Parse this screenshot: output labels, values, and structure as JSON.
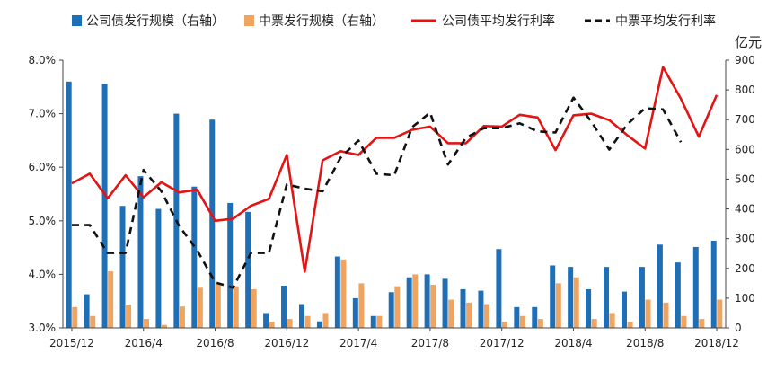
{
  "chart_data": {
    "type": "bar+line",
    "legend": [
      {
        "label": "公司债发行规模（右轴）",
        "kind": "bar",
        "color": "#1F6FB6"
      },
      {
        "label": "中票发行规模（右轴）",
        "kind": "bar",
        "color": "#F0A462"
      },
      {
        "label": "公司债平均发行利率",
        "kind": "line",
        "color": "#E31414"
      },
      {
        "label": "中票平均发行利率",
        "kind": "dashed",
        "color": "#111111"
      }
    ],
    "y_right_unit": "亿元",
    "y_left": {
      "min": 3.0,
      "max": 8.0,
      "ticks": [
        "3.0%",
        "4.0%",
        "5.0%",
        "6.0%",
        "7.0%",
        "8.0%"
      ]
    },
    "y_right": {
      "min": 0,
      "max": 900,
      "ticks": [
        "0",
        "100",
        "200",
        "300",
        "400",
        "500",
        "600",
        "700",
        "800",
        "900"
      ]
    },
    "x_tick_labels": [
      "2015/12",
      "2016/4",
      "2016/8",
      "2016/12",
      "2017/4",
      "2017/8",
      "2017/12",
      "2018/4",
      "2018/8",
      "2018/12"
    ],
    "x_tick_month_index": [
      0,
      4,
      8,
      12,
      16,
      20,
      24,
      28,
      32,
      36
    ],
    "months": 37,
    "series": [
      {
        "name": "公司债发行规模（右轴）",
        "axis": "right",
        "type": "bar",
        "values": [
          828,
          113,
          820,
          410,
          510,
          400,
          720,
          475,
          700,
          420,
          390,
          50,
          142,
          80,
          22,
          240,
          100,
          40,
          120,
          170,
          180,
          165,
          130,
          125,
          265,
          70,
          70,
          210,
          205,
          130,
          205,
          122,
          205,
          280,
          220,
          272,
          293
        ]
      },
      {
        "name": "中票发行规模（右轴）",
        "axis": "right",
        "type": "bar",
        "values": [
          70,
          40,
          190,
          78,
          30,
          10,
          72,
          135,
          150,
          140,
          130,
          20,
          30,
          40,
          50,
          230,
          150,
          40,
          140,
          180,
          145,
          95,
          85,
          80,
          20,
          40,
          30,
          150,
          170,
          30,
          50,
          20,
          95,
          85,
          40,
          30,
          95
        ]
      },
      {
        "name": "公司债平均发行利率",
        "axis": "left",
        "type": "line",
        "values": [
          5.7,
          5.88,
          5.42,
          5.85,
          5.44,
          5.72,
          5.53,
          5.58,
          5.0,
          5.04,
          5.28,
          5.41,
          6.23,
          4.05,
          6.13,
          6.3,
          6.23,
          6.55,
          6.55,
          6.7,
          6.76,
          6.45,
          6.45,
          6.77,
          6.76,
          6.98,
          6.93,
          6.32,
          6.97,
          7.0,
          6.88,
          6.6,
          6.35,
          7.87,
          7.28,
          6.57,
          7.35
        ]
      },
      {
        "name": "中票平均发行利率",
        "axis": "left",
        "type": "dashed",
        "values": [
          4.92,
          4.92,
          4.4,
          4.4,
          5.95,
          5.55,
          4.9,
          4.45,
          3.85,
          3.75,
          4.4,
          4.4,
          5.68,
          5.6,
          5.55,
          6.18,
          6.5,
          5.88,
          5.85,
          6.75,
          7.02,
          6.05,
          6.55,
          6.73,
          6.73,
          6.82,
          6.67,
          6.65,
          7.3,
          6.85,
          6.33,
          6.8,
          7.1,
          7.08,
          6.47,
          null,
          null
        ]
      }
    ]
  }
}
